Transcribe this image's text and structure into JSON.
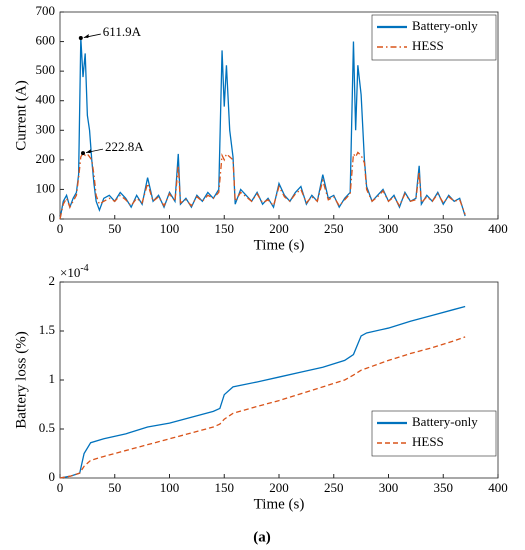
{
  "chart_data": [
    {
      "type": "line",
      "xlabel": "Time (s)",
      "ylabel": "Current (A)",
      "xlim": [
        0,
        400
      ],
      "xticks": [
        0,
        50,
        100,
        150,
        200,
        250,
        300,
        350,
        400
      ],
      "ylim": [
        0,
        700
      ],
      "yticks": [
        0,
        100,
        200,
        300,
        400,
        500,
        600,
        700
      ],
      "legend": "upper right",
      "x": [
        0,
        3,
        6,
        9,
        12,
        15,
        17,
        19,
        21,
        23,
        25,
        27,
        29,
        31,
        33,
        36,
        40,
        45,
        50,
        55,
        60,
        65,
        70,
        75,
        80,
        85,
        90,
        95,
        100,
        105,
        108,
        110,
        115,
        120,
        125,
        130,
        135,
        140,
        145,
        148,
        150,
        152,
        155,
        158,
        160,
        165,
        170,
        175,
        180,
        185,
        190,
        195,
        200,
        205,
        210,
        215,
        220,
        225,
        230,
        235,
        240,
        245,
        250,
        255,
        260,
        265,
        268,
        270,
        272,
        275,
        278,
        280,
        285,
        290,
        295,
        300,
        305,
        310,
        315,
        320,
        325,
        328,
        330,
        335,
        340,
        345,
        350,
        355,
        360,
        365,
        370
      ],
      "series": [
        {
          "name": "Battery-only",
          "color": "#0072BD",
          "dash": "solid",
          "width": 1.3,
          "values": [
            0,
            60,
            80,
            40,
            70,
            90,
            150,
            611.9,
            480,
            560,
            350,
            300,
            200,
            120,
            60,
            30,
            70,
            80,
            60,
            90,
            70,
            40,
            80,
            50,
            140,
            60,
            80,
            40,
            90,
            60,
            220,
            50,
            70,
            40,
            80,
            60,
            90,
            70,
            100,
            570,
            380,
            520,
            300,
            210,
            50,
            100,
            80,
            60,
            90,
            50,
            70,
            40,
            120,
            80,
            60,
            90,
            110,
            50,
            80,
            60,
            150,
            70,
            80,
            40,
            70,
            90,
            600,
            300,
            520,
            420,
            200,
            110,
            60,
            80,
            100,
            60,
            80,
            40,
            90,
            60,
            70,
            180,
            50,
            80,
            60,
            90,
            50,
            80,
            60,
            70,
            10
          ]
        },
        {
          "name": "HESS",
          "color": "#D95319",
          "dash": "dashdot",
          "width": 1.3,
          "values": [
            0,
            50,
            70,
            40,
            60,
            80,
            140,
            210,
            222.8,
            215,
            220,
            210,
            200,
            150,
            80,
            50,
            60,
            70,
            60,
            80,
            65,
            45,
            70,
            55,
            120,
            60,
            75,
            45,
            85,
            60,
            180,
            55,
            65,
            45,
            75,
            60,
            80,
            70,
            90,
            215,
            200,
            220,
            210,
            200,
            60,
            90,
            75,
            60,
            85,
            55,
            65,
            45,
            110,
            75,
            60,
            85,
            100,
            55,
            75,
            60,
            130,
            65,
            75,
            45,
            65,
            85,
            220,
            210,
            225,
            215,
            190,
            100,
            60,
            75,
            95,
            60,
            75,
            45,
            85,
            60,
            65,
            160,
            55,
            75,
            60,
            85,
            55,
            75,
            60,
            65,
            15
          ]
        }
      ],
      "annotations": [
        {
          "text": "611.9A",
          "x": 19,
          "y": 611.9
        },
        {
          "text": "222.8A",
          "x": 21,
          "y": 222.8
        }
      ]
    },
    {
      "type": "line",
      "xlabel": "Time (s)",
      "ylabel": "Battery loss (%)",
      "y_multiplier": "×10",
      "y_multiplier_exp": "-4",
      "xlim": [
        0,
        400
      ],
      "xticks": [
        0,
        50,
        100,
        150,
        200,
        250,
        300,
        350,
        400
      ],
      "ylim": [
        0,
        2
      ],
      "yticks": [
        0,
        0.5,
        1,
        1.5,
        2
      ],
      "legend": "lower right",
      "x": [
        0,
        10,
        18,
        22,
        28,
        40,
        60,
        80,
        100,
        120,
        140,
        146,
        150,
        158,
        180,
        200,
        220,
        240,
        260,
        268,
        275,
        280,
        300,
        320,
        340,
        360,
        370
      ],
      "series": [
        {
          "name": "Battery-only",
          "color": "#0072BD",
          "dash": "solid",
          "width": 1.3,
          "values": [
            0,
            0.02,
            0.05,
            0.25,
            0.36,
            0.4,
            0.45,
            0.52,
            0.56,
            0.62,
            0.68,
            0.71,
            0.85,
            0.93,
            0.98,
            1.03,
            1.08,
            1.13,
            1.2,
            1.26,
            1.45,
            1.48,
            1.53,
            1.6,
            1.66,
            1.72,
            1.75
          ]
        },
        {
          "name": "HESS",
          "color": "#D95319",
          "dash": "dashed",
          "width": 1.3,
          "values": [
            0,
            0.02,
            0.05,
            0.12,
            0.18,
            0.22,
            0.28,
            0.34,
            0.4,
            0.46,
            0.52,
            0.55,
            0.6,
            0.66,
            0.73,
            0.79,
            0.86,
            0.93,
            1.0,
            1.05,
            1.1,
            1.12,
            1.2,
            1.27,
            1.33,
            1.4,
            1.44
          ]
        }
      ]
    }
  ],
  "caption": "(a)"
}
